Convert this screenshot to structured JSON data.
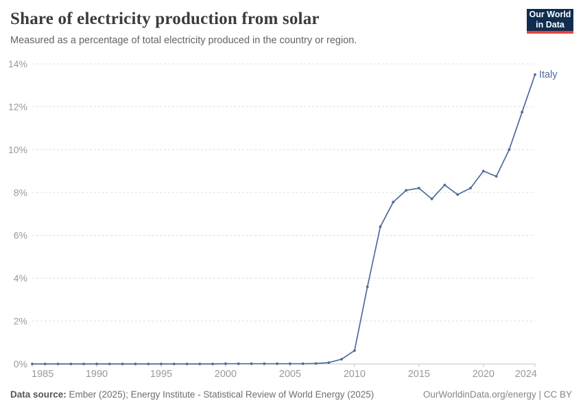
{
  "header": {
    "title": "Share of electricity production from solar",
    "subtitle": "Measured as a percentage of total electricity produced in the country or region.",
    "logo": {
      "line1": "Our World",
      "line2": "in Data",
      "bg_color": "#102d50",
      "accent_color": "#e5433d"
    }
  },
  "chart_data": {
    "type": "line",
    "title": "Share of electricity production from solar",
    "subtitle": "Measured as a percentage of total electricity produced in the country or region.",
    "xlabel": "",
    "ylabel": "",
    "xlim": [
      1985,
      2024
    ],
    "ylim": [
      0,
      14
    ],
    "grid": "horizontal-dashed",
    "legend_position": "end-of-line-label",
    "x_ticks": [
      1985,
      1990,
      1995,
      2000,
      2005,
      2010,
      2015,
      2020,
      2024
    ],
    "y_ticks": [
      0,
      2,
      4,
      6,
      8,
      10,
      12,
      14
    ],
    "y_tick_suffix": "%",
    "series": [
      {
        "name": "Italy",
        "color": "#4c6a9c",
        "x": [
          1985,
          1986,
          1987,
          1988,
          1989,
          1990,
          1991,
          1992,
          1993,
          1994,
          1995,
          1996,
          1997,
          1998,
          1999,
          2000,
          2001,
          2002,
          2003,
          2004,
          2005,
          2006,
          2007,
          2008,
          2009,
          2010,
          2011,
          2012,
          2013,
          2014,
          2015,
          2016,
          2017,
          2018,
          2019,
          2020,
          2021,
          2022,
          2023,
          2024
        ],
        "values": [
          0,
          0,
          0,
          0,
          0,
          0,
          0,
          0,
          0,
          0,
          0,
          0,
          0,
          0,
          0,
          0.01,
          0.01,
          0.01,
          0.01,
          0.01,
          0.01,
          0.01,
          0.02,
          0.06,
          0.22,
          0.62,
          3.6,
          6.4,
          7.55,
          8.1,
          8.2,
          7.7,
          8.35,
          7.9,
          8.2,
          9.0,
          8.75,
          10.0,
          11.75,
          13.5
        ]
      }
    ]
  },
  "footer": {
    "source_label": "Data source:",
    "source_text": " Ember (2025); Energy Institute - Statistical Review of World Energy (2025)",
    "credit": "OurWorldinData.org/energy | CC BY"
  },
  "colors": {
    "line": "#4c6a9c",
    "grid": "#dddddd",
    "axis": "#c4c4c4",
    "tick_label": "#999999",
    "title": "#3b3b3b",
    "subtitle": "#636363"
  }
}
